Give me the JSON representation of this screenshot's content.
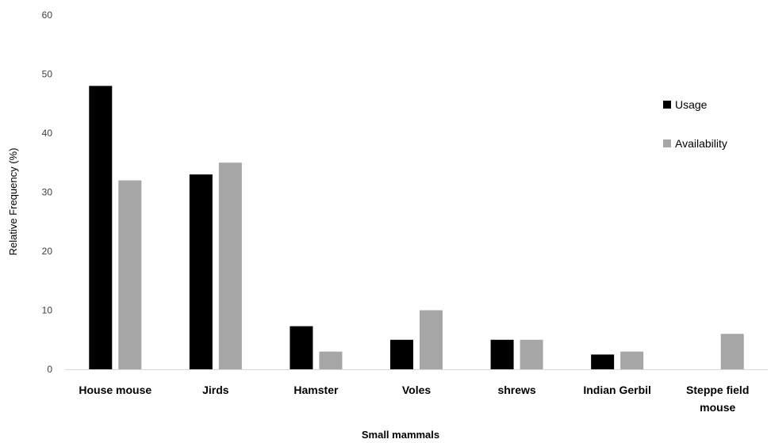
{
  "chart_data": {
    "type": "bar",
    "title": "",
    "xlabel": "Small mammals",
    "ylabel": "Relative Frequency (%)",
    "ylim": [
      0,
      60
    ],
    "yticks": [
      0,
      10,
      20,
      30,
      40,
      50,
      60
    ],
    "grid": false,
    "legend_position": "right",
    "categories": [
      [
        "House mouse"
      ],
      [
        "Jirds"
      ],
      [
        "Hamster"
      ],
      [
        "Voles"
      ],
      [
        "shrews"
      ],
      [
        "Indian Gerbil"
      ],
      [
        "Steppe field",
        "mouse"
      ]
    ],
    "series": [
      {
        "name": "Usage",
        "color": "#000000",
        "values": [
          48,
          33,
          7.3,
          5,
          5,
          2.5,
          0
        ]
      },
      {
        "name": "Availability",
        "color": "#a6a6a6",
        "values": [
          32,
          35,
          3,
          10,
          5,
          3,
          6
        ]
      }
    ]
  }
}
